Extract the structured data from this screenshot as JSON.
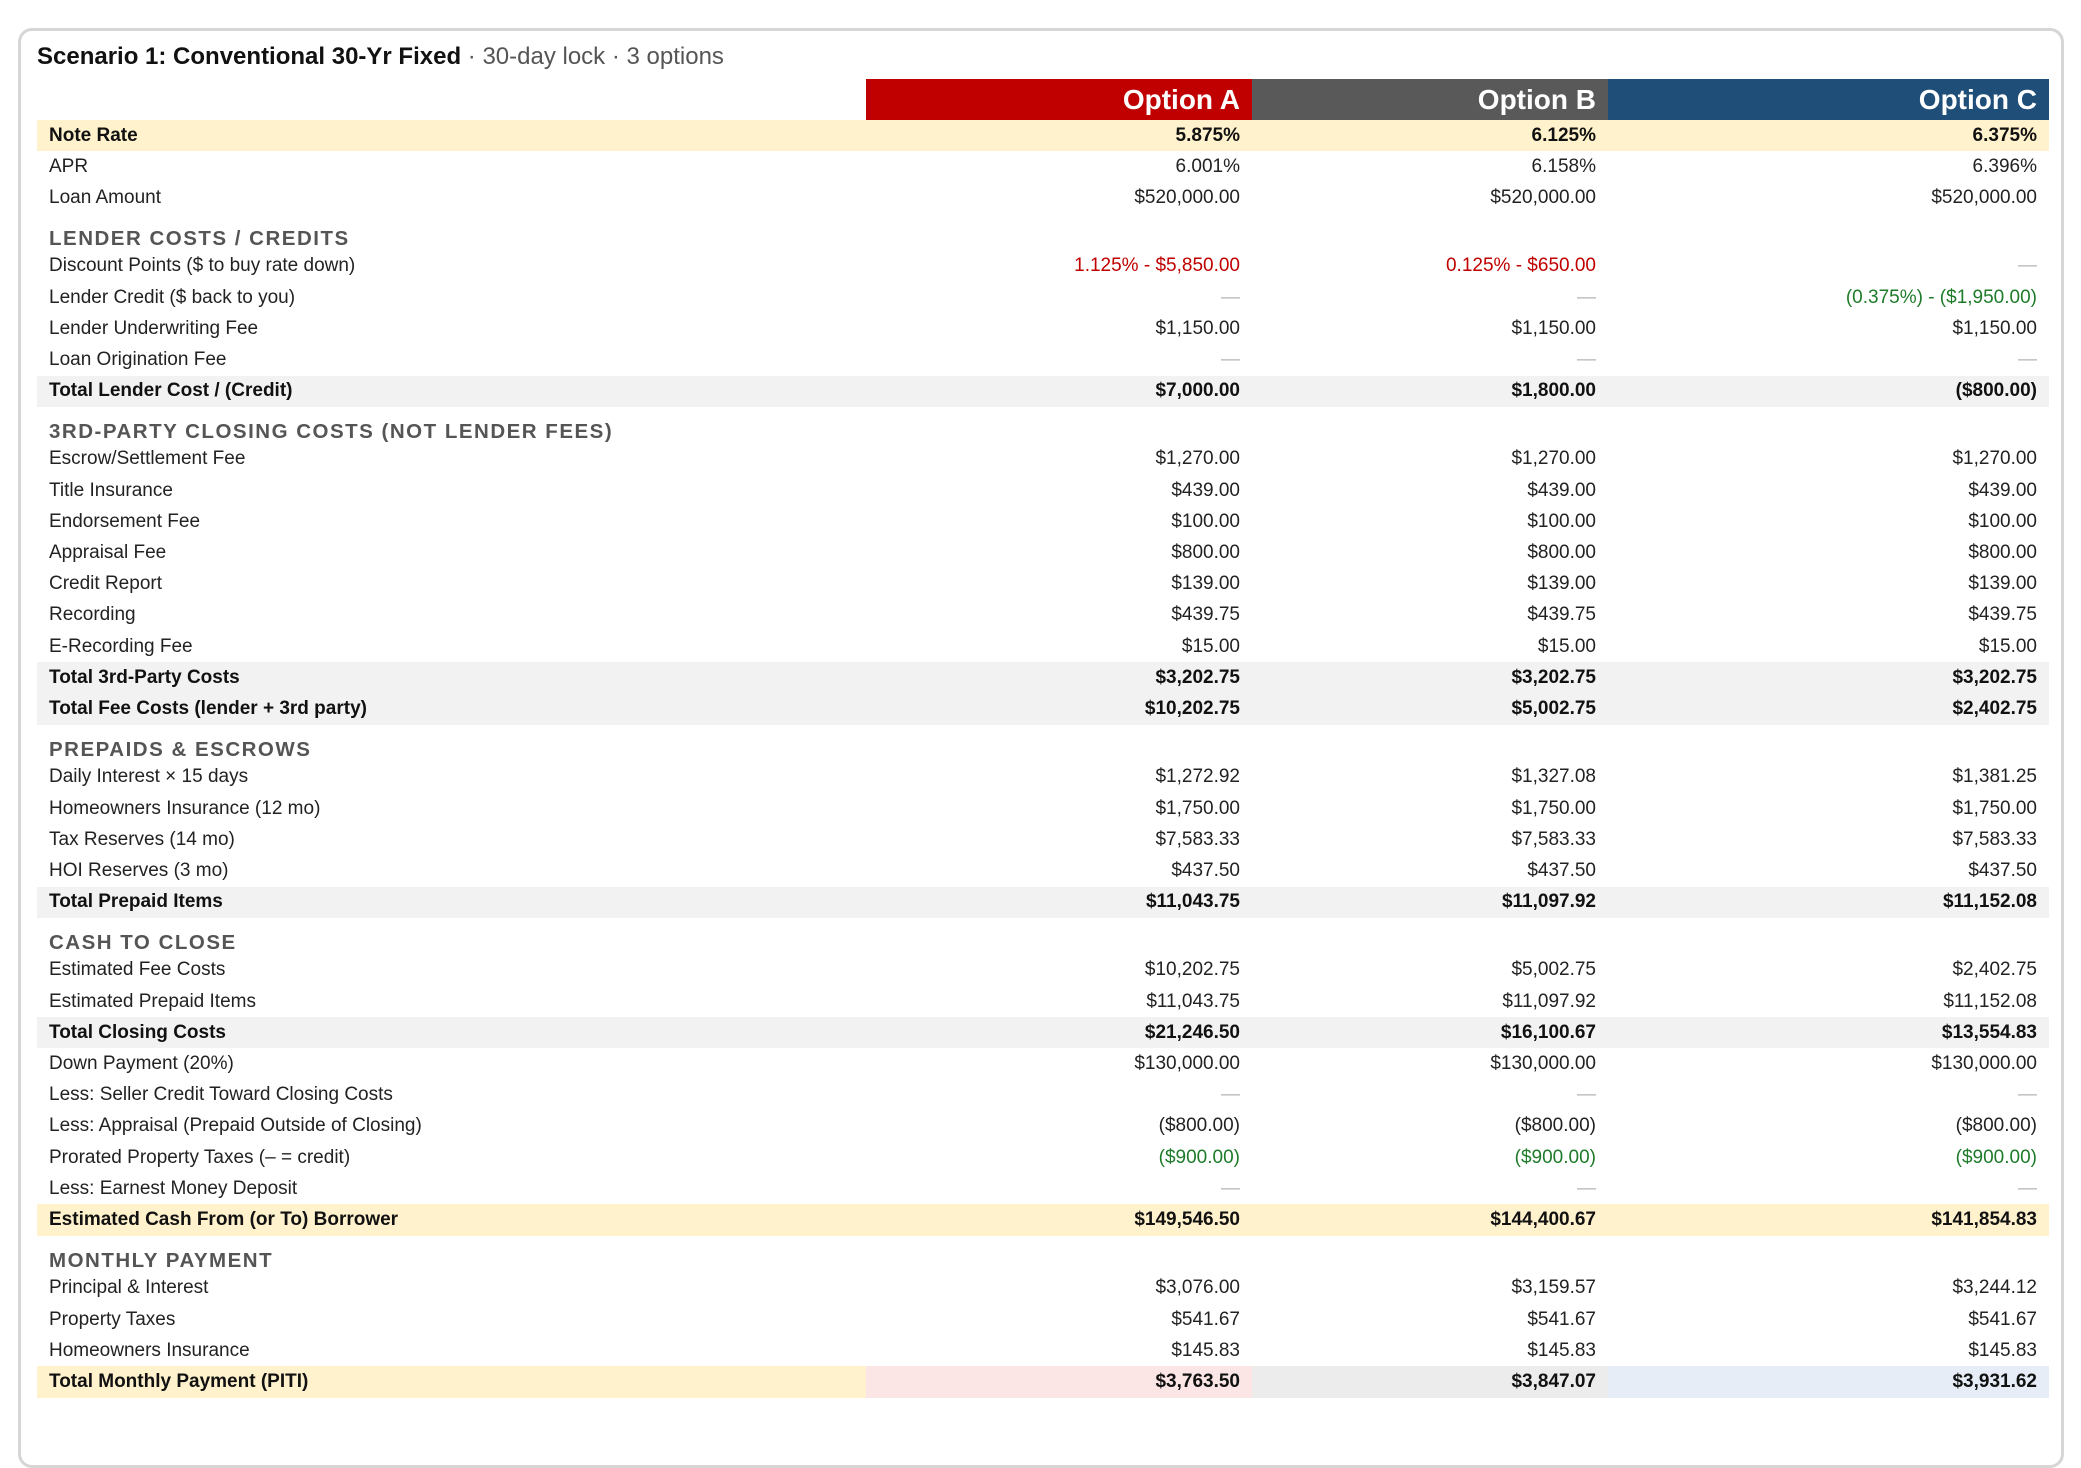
{
  "title": {
    "main": "Scenario 1: Conventional 30-Yr Fixed",
    "sub": " · 30-day lock · 3 options"
  },
  "options": [
    "Option A",
    "Option B",
    "Option C"
  ],
  "colors": {
    "option_a": "#c00000",
    "option_b": "#595959",
    "option_c": "#1f4e79",
    "highlight": "#fff2cc",
    "total": "#f2f2f2"
  },
  "rows": {
    "note_rate": {
      "label": "Note Rate",
      "a": "5.875%",
      "b": "6.125%",
      "c": "6.375%"
    },
    "apr": {
      "label": "APR",
      "a": "6.001%",
      "b": "6.158%",
      "c": "6.396%"
    },
    "loan_amount": {
      "label": "Loan Amount",
      "a": "$520,000.00",
      "b": "$520,000.00",
      "c": "$520,000.00"
    },
    "sec_lender": "LENDER COSTS / CREDITS",
    "discount_points": {
      "label": "Discount Points ($ to buy rate down)",
      "a": "1.125% - $5,850.00",
      "b": "0.125% - $650.00",
      "c": "—"
    },
    "lender_credit": {
      "label": "Lender Credit ($ back to you)",
      "a": "—",
      "b": "—",
      "c": "(0.375%) - ($1,950.00)"
    },
    "underwriting_fee": {
      "label": "Lender Underwriting Fee",
      "a": "$1,150.00",
      "b": "$1,150.00",
      "c": "$1,150.00"
    },
    "origination_fee": {
      "label": "Loan Origination Fee",
      "a": "—",
      "b": "—",
      "c": "—"
    },
    "total_lender": {
      "label": "Total Lender Cost / (Credit)",
      "a": "$7,000.00",
      "b": "$1,800.00",
      "c": "($800.00)"
    },
    "sec_third": "3RD-PARTY CLOSING COSTS (NOT LENDER FEES)",
    "escrow_fee": {
      "label": "Escrow/Settlement Fee",
      "a": "$1,270.00",
      "b": "$1,270.00",
      "c": "$1,270.00"
    },
    "title_insurance": {
      "label": "Title Insurance",
      "a": "$439.00",
      "b": "$439.00",
      "c": "$439.00"
    },
    "endorsement_fee": {
      "label": "Endorsement Fee",
      "a": "$100.00",
      "b": "$100.00",
      "c": "$100.00"
    },
    "appraisal_fee": {
      "label": "Appraisal Fee",
      "a": "$800.00",
      "b": "$800.00",
      "c": "$800.00"
    },
    "credit_report": {
      "label": "Credit Report",
      "a": "$139.00",
      "b": "$139.00",
      "c": "$139.00"
    },
    "recording": {
      "label": "Recording",
      "a": "$439.75",
      "b": "$439.75",
      "c": "$439.75"
    },
    "e_recording": {
      "label": "E-Recording Fee",
      "a": "$15.00",
      "b": "$15.00",
      "c": "$15.00"
    },
    "total_third": {
      "label": "Total 3rd-Party Costs",
      "a": "$3,202.75",
      "b": "$3,202.75",
      "c": "$3,202.75"
    },
    "total_fee": {
      "label": "Total Fee Costs (lender + 3rd party)",
      "a": "$10,202.75",
      "b": "$5,002.75",
      "c": "$2,402.75"
    },
    "sec_prepaids": "PREPAIDS & ESCROWS",
    "daily_interest": {
      "label": "Daily Interest × 15 days",
      "a": "$1,272.92",
      "b": "$1,327.08",
      "c": "$1,381.25"
    },
    "hoi_12": {
      "label": "Homeowners Insurance (12 mo)",
      "a": "$1,750.00",
      "b": "$1,750.00",
      "c": "$1,750.00"
    },
    "tax_reserves": {
      "label": "Tax Reserves (14 mo)",
      "a": "$7,583.33",
      "b": "$7,583.33",
      "c": "$7,583.33"
    },
    "hoi_reserves": {
      "label": "HOI Reserves (3 mo)",
      "a": "$437.50",
      "b": "$437.50",
      "c": "$437.50"
    },
    "total_prepaid": {
      "label": "Total Prepaid Items",
      "a": "$11,043.75",
      "b": "$11,097.92",
      "c": "$11,152.08"
    },
    "sec_cash": "CASH TO CLOSE",
    "est_fee_costs": {
      "label": "Estimated Fee Costs",
      "a": "$10,202.75",
      "b": "$5,002.75",
      "c": "$2,402.75"
    },
    "est_prepaid": {
      "label": "Estimated Prepaid Items",
      "a": "$11,043.75",
      "b": "$11,097.92",
      "c": "$11,152.08"
    },
    "total_closing": {
      "label": "Total Closing Costs",
      "a": "$21,246.50",
      "b": "$16,100.67",
      "c": "$13,554.83"
    },
    "down_payment": {
      "label": "Down Payment (20%)",
      "a": "$130,000.00",
      "b": "$130,000.00",
      "c": "$130,000.00"
    },
    "seller_credit": {
      "label": "Less: Seller Credit Toward Closing Costs",
      "a": "—",
      "b": "—",
      "c": "—"
    },
    "less_appraisal": {
      "label": "Less: Appraisal (Prepaid Outside of Closing)",
      "a": "($800.00)",
      "b": "($800.00)",
      "c": "($800.00)"
    },
    "prorated_taxes": {
      "label": "Prorated Property Taxes (– = credit)",
      "a": "($900.00)",
      "b": "($900.00)",
      "c": "($900.00)"
    },
    "earnest_money": {
      "label": "Less: Earnest Money Deposit",
      "a": "—",
      "b": "—",
      "c": "—"
    },
    "est_cash": {
      "label": "Estimated Cash From (or To) Borrower",
      "a": "$149,546.50",
      "b": "$144,400.67",
      "c": "$141,854.83"
    },
    "sec_monthly": "MONTHLY PAYMENT",
    "principal_interest": {
      "label": "Principal & Interest",
      "a": "$3,076.00",
      "b": "$3,159.57",
      "c": "$3,244.12"
    },
    "property_taxes": {
      "label": "Property Taxes",
      "a": "$541.67",
      "b": "$541.67",
      "c": "$541.67"
    },
    "homeowners_ins": {
      "label": "Homeowners Insurance",
      "a": "$145.83",
      "b": "$145.83",
      "c": "$145.83"
    },
    "total_monthly": {
      "label": "Total Monthly Payment (PITI)",
      "a": "$3,763.50",
      "b": "$3,847.07",
      "c": "$3,931.62"
    }
  }
}
